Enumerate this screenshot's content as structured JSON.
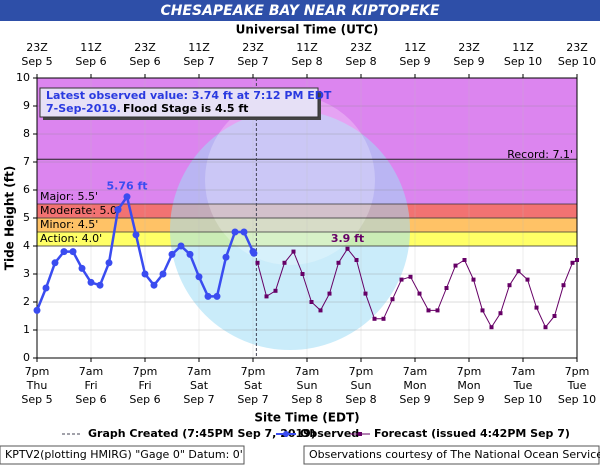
{
  "chart_data": {
    "type": "hydrograph",
    "title": "CHESAPEAKE BAY NEAR KIPTOPEKE",
    "top_axis_label": "Universal Time (UTC)",
    "x_axis_label": "Site Time (EDT)",
    "y_axis_label": "Tide Height (ft)",
    "xlim": [
      "Sep 5 19:00",
      "Sep 10 19:00"
    ],
    "ylim": [
      0,
      10
    ],
    "yticks": [
      0,
      1,
      2,
      3,
      4,
      5,
      6,
      7,
      8,
      9,
      10
    ],
    "grid": true,
    "top_xticks": [
      {
        "value": "Sep 5 19:00",
        "label": [
          "23Z",
          "Sep 5"
        ]
      },
      {
        "value": "Sep 6 07:00",
        "label": [
          "11Z",
          "Sep 6"
        ]
      },
      {
        "value": "Sep 6 19:00",
        "label": [
          "23Z",
          "Sep 6"
        ]
      },
      {
        "value": "Sep 7 07:00",
        "label": [
          "11Z",
          "Sep 7"
        ]
      },
      {
        "value": "Sep 7 19:00",
        "label": [
          "23Z",
          "Sep 7"
        ]
      },
      {
        "value": "Sep 8 07:00",
        "label": [
          "11Z",
          "Sep 8"
        ]
      },
      {
        "value": "Sep 8 19:00",
        "label": [
          "23Z",
          "Sep 8"
        ]
      },
      {
        "value": "Sep 9 07:00",
        "label": [
          "11Z",
          "Sep 9"
        ]
      },
      {
        "value": "Sep 9 19:00",
        "label": [
          "23Z",
          "Sep 9"
        ]
      },
      {
        "value": "Sep 10 07:00",
        "label": [
          "11Z",
          "Sep 10"
        ]
      },
      {
        "value": "Sep 10 19:00",
        "label": [
          "23Z",
          "Sep 10"
        ]
      }
    ],
    "xticks": [
      {
        "value": "Sep 5 19:00",
        "label": [
          "7pm",
          "Thu",
          "Sep 5"
        ]
      },
      {
        "value": "Sep 6 07:00",
        "label": [
          "7am",
          "Fri",
          "Sep 6"
        ]
      },
      {
        "value": "Sep 6 19:00",
        "label": [
          "7pm",
          "Fri",
          "Sep 6"
        ]
      },
      {
        "value": "Sep 7 07:00",
        "label": [
          "7am",
          "Sat",
          "Sep 7"
        ]
      },
      {
        "value": "Sep 7 19:00",
        "label": [
          "7pm",
          "Sat",
          "Sep 7"
        ]
      },
      {
        "value": "Sep 8 07:00",
        "label": [
          "7am",
          "Sun",
          "Sep 8"
        ]
      },
      {
        "value": "Sep 8 19:00",
        "label": [
          "7pm",
          "Sun",
          "Sep 8"
        ]
      },
      {
        "value": "Sep 9 07:00",
        "label": [
          "7am",
          "Mon",
          "Sep 9"
        ]
      },
      {
        "value": "Sep 9 19:00",
        "label": [
          "7pm",
          "Mon",
          "Sep 9"
        ]
      },
      {
        "value": "Sep 10 07:00",
        "label": [
          "7am",
          "Tue",
          "Sep 10"
        ]
      },
      {
        "value": "Sep 10 19:00",
        "label": [
          "7pm",
          "Tue",
          "Sep 10"
        ]
      }
    ],
    "flood_stages": [
      {
        "label": "Action: 4.0'",
        "value": 4.0,
        "color": "#ffff66"
      },
      {
        "label": "Minor: 4.5'",
        "value": 4.5,
        "color": "#ffc266"
      },
      {
        "label": "Moderate: 5.0'",
        "value": 5.0,
        "color": "#f27272"
      },
      {
        "label": "Major: 5.5'",
        "value": 5.5,
        "color": "#dc85ef"
      }
    ],
    "record": {
      "label": "Record: 7.1'",
      "value": 7.1
    },
    "graph_created": {
      "label": "Graph Created (7:45PM Sep 7, 2019)",
      "x": "Sep 7 19:45"
    },
    "series": [
      {
        "name": "Observed",
        "color": "#3a4cf0",
        "x": [
          "Sep 5 19:00",
          "Sep 5 21:00",
          "Sep 5 23:00",
          "Sep 6 01:00",
          "Sep 6 03:00",
          "Sep 6 05:00",
          "Sep 6 07:00",
          "Sep 6 09:00",
          "Sep 6 11:00",
          "Sep 6 13:00",
          "Sep 6 15:00",
          "Sep 6 17:00",
          "Sep 6 19:00",
          "Sep 6 21:00",
          "Sep 6 23:00",
          "Sep 7 01:00",
          "Sep 7 03:00",
          "Sep 7 05:00",
          "Sep 7 07:00",
          "Sep 7 09:00",
          "Sep 7 11:00",
          "Sep 7 13:00",
          "Sep 7 15:00",
          "Sep 7 17:00",
          "Sep 7 19:00",
          "Sep 7 19:12"
        ],
        "values": [
          1.7,
          2.5,
          3.4,
          3.8,
          3.8,
          3.2,
          2.7,
          2.6,
          3.4,
          5.3,
          5.76,
          4.4,
          3.0,
          2.6,
          3.0,
          3.7,
          4.0,
          3.7,
          2.9,
          2.2,
          2.2,
          3.6,
          4.5,
          4.5,
          3.8,
          3.74
        ]
      },
      {
        "name": "Forecast (issued 4:42PM Sep 7)",
        "color": "#660066",
        "x": [
          "Sep 7 20:00",
          "Sep 7 22:00",
          "Sep 8 00:00",
          "Sep 8 02:00",
          "Sep 8 04:00",
          "Sep 8 06:00",
          "Sep 8 08:00",
          "Sep 8 10:00",
          "Sep 8 12:00",
          "Sep 8 14:00",
          "Sep 8 16:00",
          "Sep 8 18:00",
          "Sep 8 20:00",
          "Sep 8 22:00",
          "Sep 9 00:00",
          "Sep 9 02:00",
          "Sep 9 04:00",
          "Sep 9 06:00",
          "Sep 9 08:00",
          "Sep 9 10:00",
          "Sep 9 12:00",
          "Sep 9 14:00",
          "Sep 9 16:00",
          "Sep 9 18:00",
          "Sep 9 20:00",
          "Sep 9 22:00",
          "Sep 10 00:00",
          "Sep 10 02:00",
          "Sep 10 04:00",
          "Sep 10 06:00",
          "Sep 10 08:00",
          "Sep 10 10:00",
          "Sep 10 12:00",
          "Sep 10 14:00",
          "Sep 10 16:00",
          "Sep 10 18:00",
          "Sep 10 19:00"
        ],
        "values": [
          3.4,
          2.2,
          2.4,
          3.4,
          3.8,
          3.0,
          2.0,
          1.7,
          2.3,
          3.4,
          3.9,
          3.5,
          2.3,
          1.4,
          1.4,
          2.1,
          2.8,
          2.9,
          2.3,
          1.7,
          1.7,
          2.5,
          3.3,
          3.5,
          2.8,
          1.7,
          1.1,
          1.6,
          2.6,
          3.1,
          2.8,
          1.8,
          1.1,
          1.5,
          2.6,
          3.4,
          3.5
        ]
      }
    ],
    "annotations": [
      {
        "text": "5.76 ft",
        "x": "Sep 6 15:00",
        "y": 5.76,
        "color": "#3a4cf0"
      },
      {
        "text": "3.9 ft",
        "x": "Sep 8 16:00",
        "y": 3.9,
        "color": "#660066"
      }
    ],
    "info_box": {
      "observed": "Latest observed value: 3.74 ft at 7:12 PM EDT",
      "date": "7-Sep-2019.",
      "flood_stage": "Flood Stage is 4.5 ft"
    },
    "legend_graph_created": "Graph Created (7:45PM Sep 7, 2019)",
    "footer_left": "KPTV2(plotting HMIRG) \"Gage 0\" Datum: 0'",
    "footer_right": "Observations courtesy of The National Ocean Service"
  }
}
